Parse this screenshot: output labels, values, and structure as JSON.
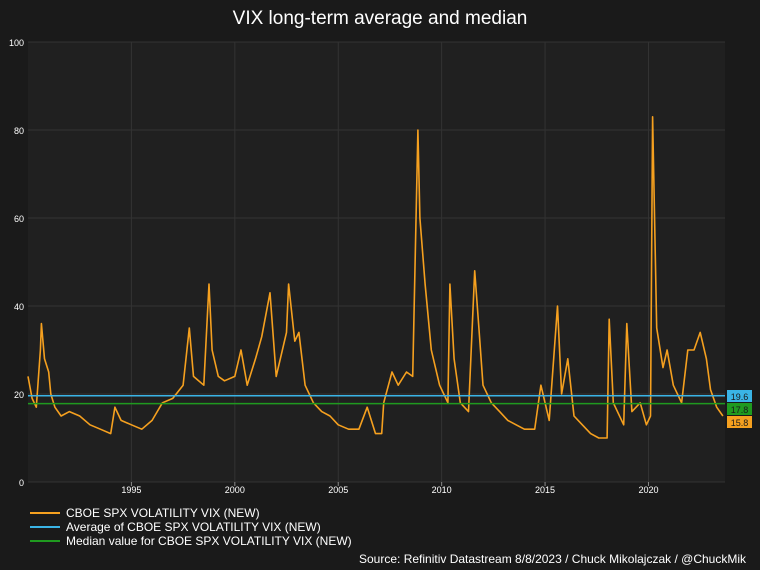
{
  "chart_data": {
    "type": "line",
    "title": "VIX long-term average and median",
    "ylim": [
      0,
      100
    ],
    "y_ticks": [
      "0",
      "20",
      "40",
      "60",
      "80",
      "100"
    ],
    "x_ticks": [
      "1995",
      "2000",
      "2005",
      "2010",
      "2015",
      "2020"
    ],
    "grid": "on",
    "legend_position": "bottom-left",
    "series": [
      {
        "name": "CBOE SPX VOLATILITY VIX (NEW)",
        "color": "#f5a01f",
        "points": [
          [
            1990.0,
            24
          ],
          [
            1990.2,
            19
          ],
          [
            1990.4,
            17
          ],
          [
            1990.6,
            30
          ],
          [
            1990.65,
            36
          ],
          [
            1990.8,
            28
          ],
          [
            1991.0,
            25
          ],
          [
            1991.1,
            20
          ],
          [
            1991.3,
            17
          ],
          [
            1991.6,
            15
          ],
          [
            1992.0,
            16
          ],
          [
            1992.5,
            15
          ],
          [
            1993.0,
            13
          ],
          [
            1993.5,
            12
          ],
          [
            1994.0,
            11
          ],
          [
            1994.2,
            17
          ],
          [
            1994.5,
            14
          ],
          [
            1995.0,
            13
          ],
          [
            1995.5,
            12
          ],
          [
            1996.0,
            14
          ],
          [
            1996.5,
            18
          ],
          [
            1997.0,
            19
          ],
          [
            1997.5,
            22
          ],
          [
            1997.8,
            35
          ],
          [
            1998.0,
            24
          ],
          [
            1998.5,
            22
          ],
          [
            1998.75,
            45
          ],
          [
            1998.9,
            30
          ],
          [
            1999.2,
            24
          ],
          [
            1999.5,
            23
          ],
          [
            2000.0,
            24
          ],
          [
            2000.3,
            30
          ],
          [
            2000.6,
            22
          ],
          [
            2001.0,
            28
          ],
          [
            2001.3,
            33
          ],
          [
            2001.7,
            43
          ],
          [
            2002.0,
            24
          ],
          [
            2002.5,
            34
          ],
          [
            2002.6,
            45
          ],
          [
            2002.9,
            32
          ],
          [
            2003.1,
            34
          ],
          [
            2003.4,
            22
          ],
          [
            2003.8,
            18
          ],
          [
            2004.2,
            16
          ],
          [
            2004.6,
            15
          ],
          [
            2005.0,
            13
          ],
          [
            2005.5,
            12
          ],
          [
            2006.0,
            12
          ],
          [
            2006.4,
            17
          ],
          [
            2006.8,
            11
          ],
          [
            2007.1,
            11
          ],
          [
            2007.2,
            18
          ],
          [
            2007.6,
            25
          ],
          [
            2007.9,
            22
          ],
          [
            2008.3,
            25
          ],
          [
            2008.6,
            24
          ],
          [
            2008.85,
            80
          ],
          [
            2008.95,
            60
          ],
          [
            2009.2,
            45
          ],
          [
            2009.5,
            30
          ],
          [
            2009.9,
            22
          ],
          [
            2010.3,
            18
          ],
          [
            2010.4,
            45
          ],
          [
            2010.6,
            28
          ],
          [
            2010.9,
            18
          ],
          [
            2011.3,
            16
          ],
          [
            2011.6,
            48
          ],
          [
            2011.8,
            35
          ],
          [
            2012.0,
            22
          ],
          [
            2012.4,
            18
          ],
          [
            2012.8,
            16
          ],
          [
            2013.2,
            14
          ],
          [
            2013.6,
            13
          ],
          [
            2014.0,
            12
          ],
          [
            2014.5,
            12
          ],
          [
            2014.8,
            22
          ],
          [
            2015.2,
            14
          ],
          [
            2015.6,
            40
          ],
          [
            2015.8,
            20
          ],
          [
            2016.1,
            28
          ],
          [
            2016.4,
            15
          ],
          [
            2016.8,
            13
          ],
          [
            2017.2,
            11
          ],
          [
            2017.6,
            10
          ],
          [
            2018.0,
            10
          ],
          [
            2018.1,
            37
          ],
          [
            2018.3,
            18
          ],
          [
            2018.8,
            13
          ],
          [
            2018.95,
            36
          ],
          [
            2019.2,
            16
          ],
          [
            2019.6,
            18
          ],
          [
            2019.9,
            13
          ],
          [
            2020.1,
            15
          ],
          [
            2020.2,
            83
          ],
          [
            2020.4,
            35
          ],
          [
            2020.7,
            26
          ],
          [
            2020.9,
            30
          ],
          [
            2021.2,
            22
          ],
          [
            2021.6,
            18
          ],
          [
            2021.9,
            30
          ],
          [
            2022.2,
            30
          ],
          [
            2022.5,
            34
          ],
          [
            2022.8,
            28
          ],
          [
            2023.0,
            21
          ],
          [
            2023.3,
            17
          ],
          [
            2023.6,
            15
          ]
        ]
      },
      {
        "name": "Average of CBOE SPX VOLATILITY VIX (NEW)",
        "color": "#3ab4e6",
        "value": 19.6
      },
      {
        "name": "Median value for CBOE SPX VOLATILITY VIX (NEW)",
        "color": "#1f9a1f",
        "value": 17.8
      }
    ],
    "end_labels": [
      {
        "text": "19.6",
        "color": "#3ab4e6",
        "value": 19.6
      },
      {
        "text": "17.8",
        "color": "#1f9a1f",
        "value": 17.8
      },
      {
        "text": "15.8",
        "color": "#f5a01f",
        "value": 15.8
      }
    ],
    "source": "Source: Refinitiv Datastream 8/8/2023 / Chuck Mikolajczak / @ChuckMik"
  }
}
